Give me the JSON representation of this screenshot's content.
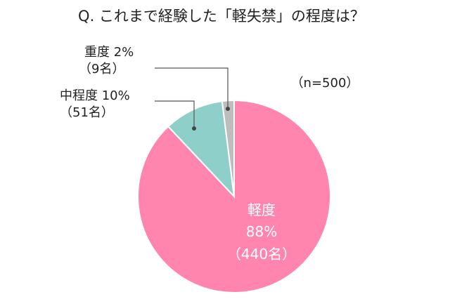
{
  "chart_data": {
    "type": "pie",
    "title": "Q. これまで経験した「軽失禁」の程度は？",
    "sample_note": "（n=500）",
    "slices": [
      {
        "label": "軽度",
        "percent": 88,
        "percent_label": "88%",
        "count_label": "（440名）",
        "color": "#FF85AF"
      },
      {
        "label": "中程度",
        "percent": 10,
        "percent_label": "10%",
        "count_label": "（51名）",
        "color": "#8ED0C9"
      },
      {
        "label": "重度",
        "percent": 2,
        "percent_label": "2%",
        "count_label": "（9名）",
        "color": "#BDBDBD"
      }
    ],
    "start": "12 o'clock",
    "direction": "clockwise",
    "legend": "none"
  }
}
